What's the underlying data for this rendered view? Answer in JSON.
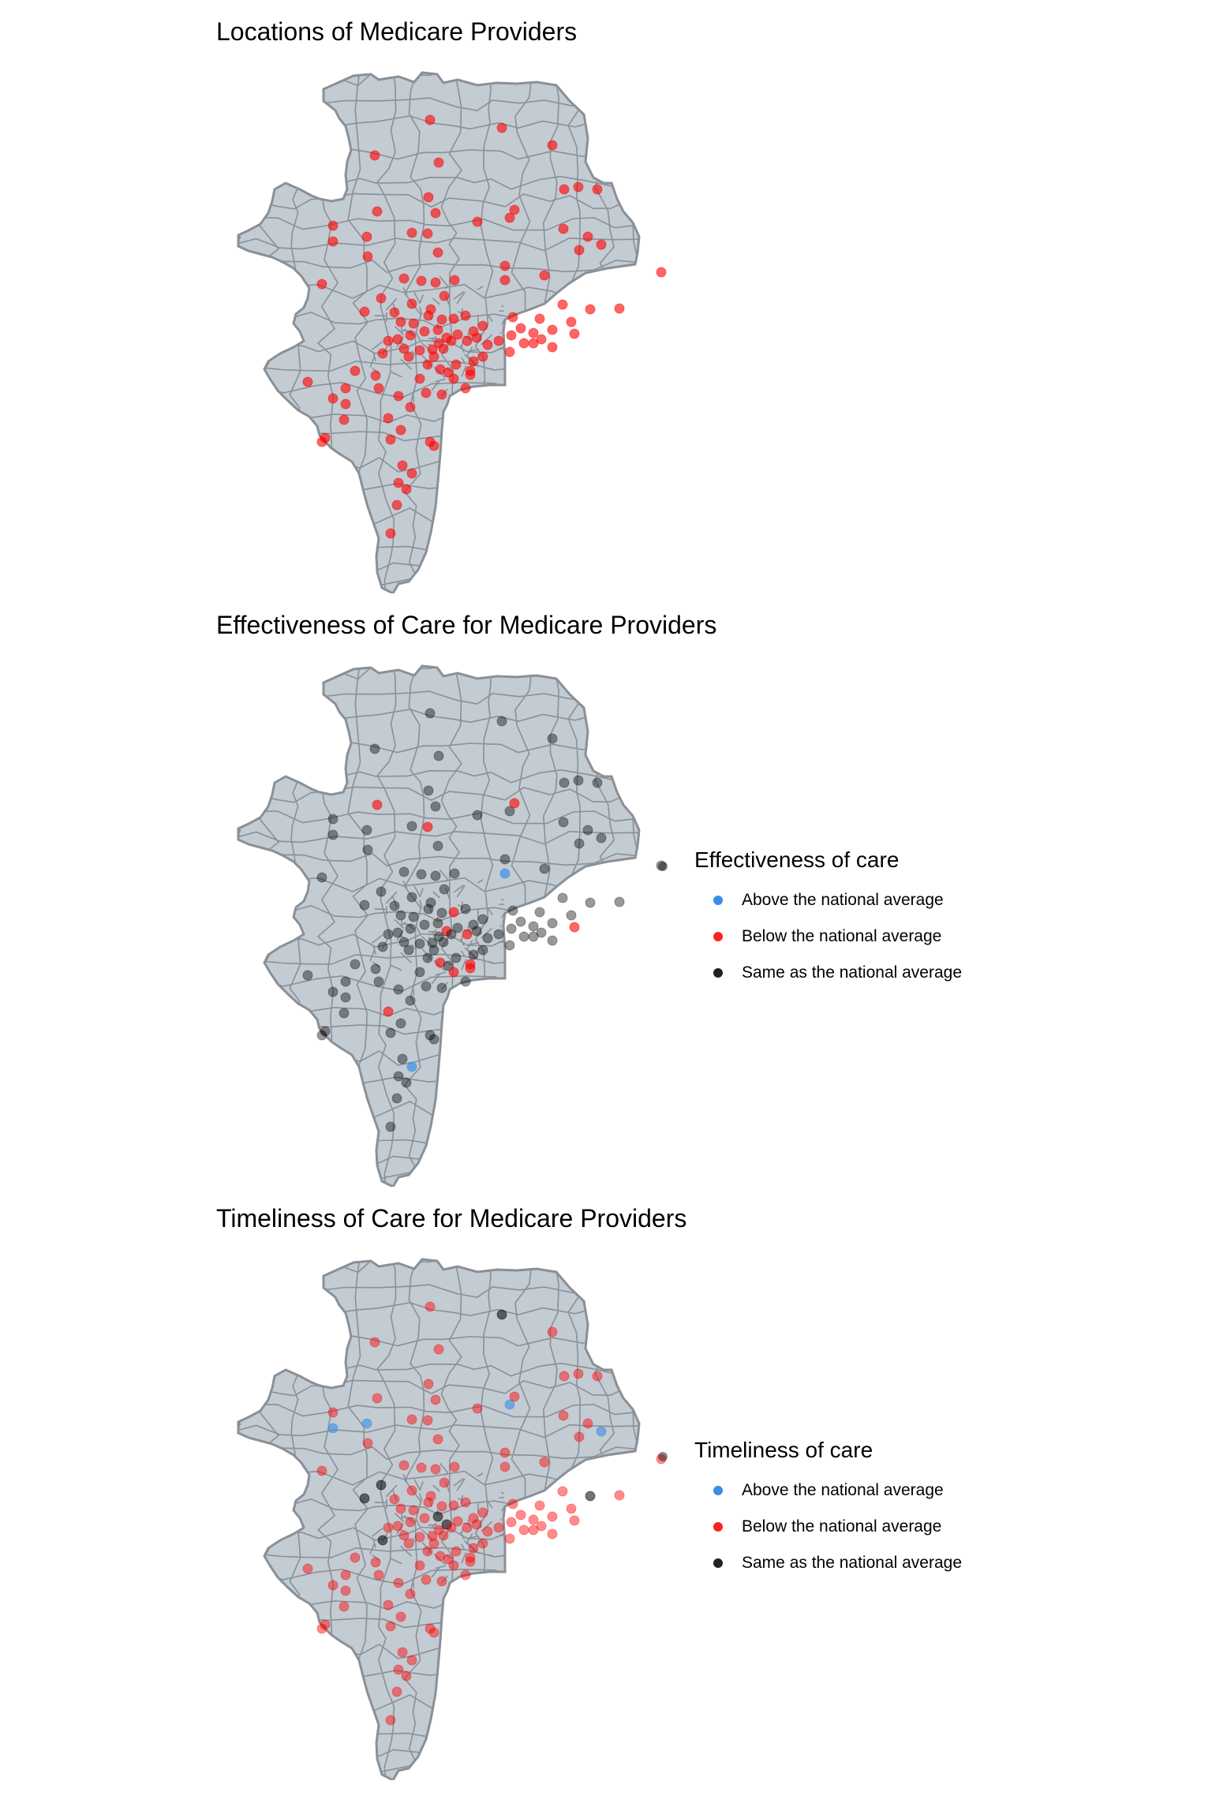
{
  "colors": {
    "land_fill": "#c3cbd3",
    "boundary": "#8a9096",
    "above": "#3a8ee6",
    "below": "#ff0000",
    "same": "#000000"
  },
  "panels": [
    {
      "id": "locations",
      "title": "Locations of Medicare Providers",
      "legend": null
    },
    {
      "id": "effectiveness",
      "title": "Effectiveness of Care for Medicare Providers",
      "legend": {
        "title": "Effectiveness of care",
        "items": [
          {
            "label": "Above the national average",
            "color_key": "above"
          },
          {
            "label": "Below the national average",
            "color_key": "below"
          },
          {
            "label": "Same as the national average",
            "color_key": "same"
          }
        ]
      }
    },
    {
      "id": "timeliness",
      "title": "Timeliness of Care for Medicare Providers",
      "legend": {
        "title": "Timeliness of care",
        "items": [
          {
            "label": "Above the national average",
            "color_key": "above"
          },
          {
            "label": "Below the national average",
            "color_key": "below"
          },
          {
            "label": "Same as the national average",
            "color_key": "same"
          }
        ]
      }
    }
  ]
}
